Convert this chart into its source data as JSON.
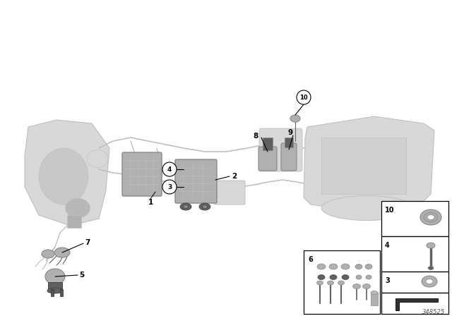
{
  "bg_color": "#ffffff",
  "part_number": "348525",
  "ghost_color": "#d8d8d8",
  "ghost_edge": "#c0c0c0",
  "comp_color": "#b0b0b0",
  "comp_edge": "#888888",
  "dark_color": "#606060",
  "line_color": "#c0c0c0",
  "label_line_color": "#000000"
}
